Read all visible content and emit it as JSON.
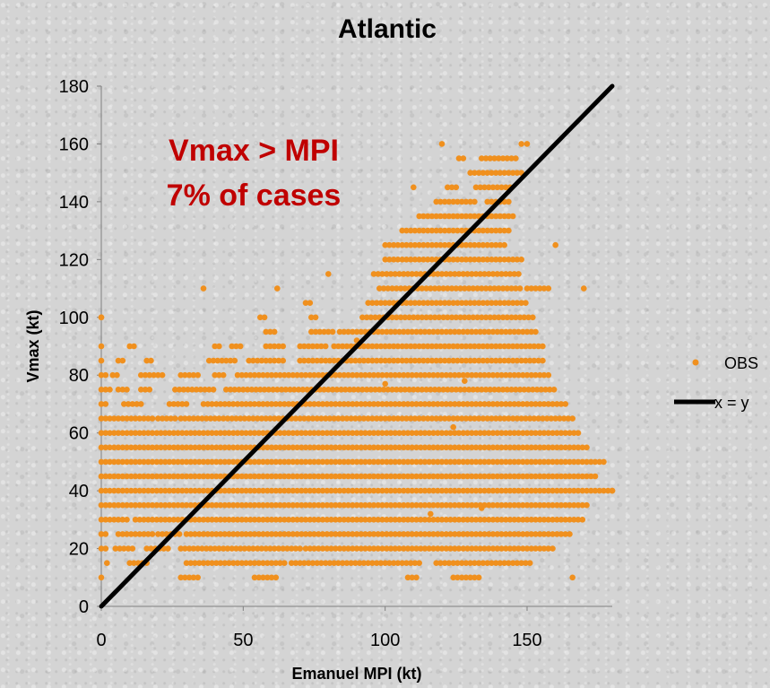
{
  "chart_data": {
    "type": "scatter",
    "title": "Atlantic",
    "xlabel": "Emanuel MPI (kt)",
    "ylabel": "Vmax (kt)",
    "xlim": [
      0,
      180
    ],
    "ylim": [
      0,
      180
    ],
    "xticks": [
      "0",
      "50",
      "100",
      "150"
    ],
    "xtick_values": [
      0,
      50,
      100,
      150
    ],
    "yticks": [
      "0",
      "20",
      "40",
      "60",
      "80",
      "100",
      "120",
      "140",
      "160",
      "180"
    ],
    "ytick_values": [
      0,
      20,
      40,
      60,
      80,
      100,
      120,
      140,
      160,
      180
    ],
    "grid": false,
    "legend_position": "right",
    "annotation": {
      "lines": [
        "Vmax > MPI",
        "7% of cases"
      ],
      "color": "#c00000"
    },
    "series": [
      {
        "name": "OBS",
        "kind": "scatter",
        "color": "#f0901e",
        "bands": [
          {
            "y": 10,
            "x": [
              [
                0,
                1
              ],
              [
                28,
                34
              ],
              [
                54,
                62
              ],
              [
                108,
                112
              ],
              [
                124,
                134
              ],
              [
                166,
                167
              ]
            ]
          },
          {
            "y": 15,
            "x": [
              [
                2,
                3
              ],
              [
                10,
                16
              ],
              [
                30,
                65
              ],
              [
                67,
                112
              ],
              [
                118,
                152
              ]
            ]
          },
          {
            "y": 20,
            "x": [
              [
                0,
                2
              ],
              [
                5,
                12
              ],
              [
                16,
                24
              ],
              [
                28,
                70
              ],
              [
                72,
                160
              ]
            ]
          },
          {
            "y": 25,
            "x": [
              [
                0,
                2
              ],
              [
                6,
                18
              ],
              [
                20,
                28
              ],
              [
                30,
                165
              ]
            ]
          },
          {
            "y": 30,
            "x": [
              [
                0,
                10
              ],
              [
                12,
                170
              ]
            ]
          },
          {
            "y": 35,
            "x": [
              [
                0,
                172
              ]
            ]
          },
          {
            "y": 40,
            "x": [
              [
                0,
                180
              ]
            ]
          },
          {
            "y": 45,
            "x": [
              [
                0,
                174
              ]
            ]
          },
          {
            "y": 50,
            "x": [
              [
                0,
                178
              ]
            ]
          },
          {
            "y": 55,
            "x": [
              [
                0,
                172
              ]
            ]
          },
          {
            "y": 60,
            "x": [
              [
                0,
                168
              ]
            ]
          },
          {
            "y": 65,
            "x": [
              [
                0,
                18
              ],
              [
                20,
                26
              ],
              [
                28,
                166
              ]
            ]
          },
          {
            "y": 70,
            "x": [
              [
                0,
                2
              ],
              [
                8,
                14
              ],
              [
                24,
                30
              ],
              [
                36,
                164
              ]
            ]
          },
          {
            "y": 75,
            "x": [
              [
                0,
                4
              ],
              [
                6,
                10
              ],
              [
                14,
                18
              ],
              [
                26,
                40
              ],
              [
                44,
                160
              ]
            ]
          },
          {
            "y": 80,
            "x": [
              [
                0,
                2
              ],
              [
                4,
                6
              ],
              [
                14,
                22
              ],
              [
                28,
                34
              ],
              [
                40,
                44
              ],
              [
                48,
                158
              ]
            ]
          },
          {
            "y": 85,
            "x": [
              [
                0,
                1
              ],
              [
                6,
                8
              ],
              [
                16,
                18
              ],
              [
                38,
                48
              ],
              [
                52,
                64
              ],
              [
                70,
                156
              ]
            ]
          },
          {
            "y": 90,
            "x": [
              [
                0,
                1
              ],
              [
                10,
                12
              ],
              [
                40,
                42
              ],
              [
                46,
                50
              ],
              [
                58,
                64
              ],
              [
                70,
                80
              ],
              [
                82,
                156
              ]
            ]
          },
          {
            "y": 95,
            "x": [
              [
                58,
                62
              ],
              [
                74,
                82
              ],
              [
                84,
                154
              ]
            ]
          },
          {
            "y": 100,
            "x": [
              [
                0,
                1
              ],
              [
                56,
                58
              ],
              [
                74,
                76
              ],
              [
                92,
                152
              ]
            ]
          },
          {
            "y": 105,
            "x": [
              [
                72,
                74
              ],
              [
                94,
                150
              ]
            ]
          },
          {
            "y": 110,
            "x": [
              [
                36,
                37
              ],
              [
                62,
                63
              ],
              [
                98,
                148
              ],
              [
                150,
                158
              ],
              [
                170,
                171
              ]
            ]
          },
          {
            "y": 115,
            "x": [
              [
                80,
                81
              ],
              [
                96,
                148
              ]
            ]
          },
          {
            "y": 120,
            "x": [
              [
                100,
                148
              ]
            ]
          },
          {
            "y": 125,
            "x": [
              [
                100,
                142
              ],
              [
                160,
                161
              ]
            ]
          },
          {
            "y": 130,
            "x": [
              [
                106,
                144
              ]
            ]
          },
          {
            "y": 135,
            "x": [
              [
                112,
                146
              ]
            ]
          },
          {
            "y": 140,
            "x": [
              [
                118,
                132
              ],
              [
                136,
                144
              ]
            ]
          },
          {
            "y": 145,
            "x": [
              [
                110,
                111
              ],
              [
                122,
                126
              ],
              [
                132,
                144
              ]
            ]
          },
          {
            "y": 150,
            "x": [
              [
                130,
                148
              ]
            ]
          },
          {
            "y": 155,
            "x": [
              [
                126,
                128
              ],
              [
                134,
                146
              ]
            ]
          },
          {
            "y": 160,
            "x": [
              [
                120,
                121
              ],
              [
                150,
                151
              ]
            ]
          }
        ],
        "points": [
          {
            "x": 148,
            "y": 160
          },
          {
            "x": 0,
            "y": 100
          },
          {
            "x": 180,
            "y": 40
          },
          {
            "x": 116,
            "y": 32
          },
          {
            "x": 124,
            "y": 62
          },
          {
            "x": 134,
            "y": 34
          },
          {
            "x": 100,
            "y": 77
          },
          {
            "x": 128,
            "y": 78
          },
          {
            "x": 90,
            "y": 92
          }
        ]
      },
      {
        "name": "x = y",
        "kind": "line",
        "color": "#000000",
        "x": [
          0,
          180
        ],
        "y": [
          0,
          180
        ]
      }
    ]
  }
}
